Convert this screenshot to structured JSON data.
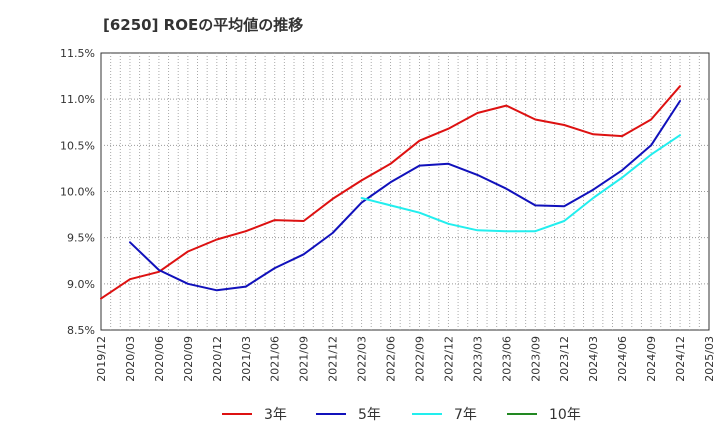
{
  "chart_data": {
    "type": "line",
    "title": "[6250]  ROEの平均値の推移",
    "xlabel": "",
    "ylabel": "",
    "ylim": [
      8.5,
      11.5
    ],
    "y_ticks": [
      "8.5%",
      "9.0%",
      "9.5%",
      "10.0%",
      "10.5%",
      "11.0%",
      "11.5%"
    ],
    "y_tick_values": [
      8.5,
      9.0,
      9.5,
      10.0,
      10.5,
      11.0,
      11.5
    ],
    "x_ticks": [
      "2019/12",
      "2020/03",
      "2020/06",
      "2020/09",
      "2020/12",
      "2021/03",
      "2021/06",
      "2021/09",
      "2021/12",
      "2022/03",
      "2022/06",
      "2022/09",
      "2022/12",
      "2023/03",
      "2023/06",
      "2023/09",
      "2023/12",
      "2024/03",
      "2024/06",
      "2024/09",
      "2024/12",
      "2025/03"
    ],
    "x_range_months": [
      0,
      63
    ],
    "grid": true,
    "legend_position": "bottom",
    "series": [
      {
        "name": "3年",
        "color": "#dd1111",
        "x": [
          0,
          3,
          6,
          9,
          12,
          15,
          18,
          21,
          24,
          27,
          30,
          33,
          36,
          39,
          42,
          45,
          48,
          51,
          54,
          57,
          60
        ],
        "values": [
          8.84,
          9.05,
          9.13,
          9.35,
          9.48,
          9.57,
          9.69,
          9.68,
          9.92,
          10.12,
          10.3,
          10.55,
          10.68,
          10.85,
          10.93,
          10.78,
          10.72,
          10.62,
          10.6,
          10.78,
          11.14
        ]
      },
      {
        "name": "5年",
        "color": "#1111bb",
        "x": [
          3,
          6,
          9,
          12,
          15,
          18,
          21,
          24,
          27,
          30,
          33,
          36,
          39,
          42,
          45,
          48,
          51,
          54,
          57,
          60
        ],
        "values": [
          9.45,
          9.15,
          9.0,
          8.93,
          8.97,
          9.17,
          9.32,
          9.55,
          9.88,
          10.1,
          10.28,
          10.3,
          10.18,
          10.03,
          9.85,
          9.84,
          10.02,
          10.23,
          10.5,
          10.98
        ]
      },
      {
        "name": "7年",
        "color": "#22eeee",
        "x": [
          27,
          30,
          33,
          36,
          39,
          42,
          45,
          48,
          51,
          54,
          57,
          60
        ],
        "values": [
          9.93,
          9.85,
          9.77,
          9.65,
          9.58,
          9.57,
          9.57,
          9.68,
          9.93,
          10.15,
          10.4,
          10.61
        ]
      },
      {
        "name": "10年",
        "color": "#228822",
        "x": [],
        "values": []
      }
    ]
  }
}
